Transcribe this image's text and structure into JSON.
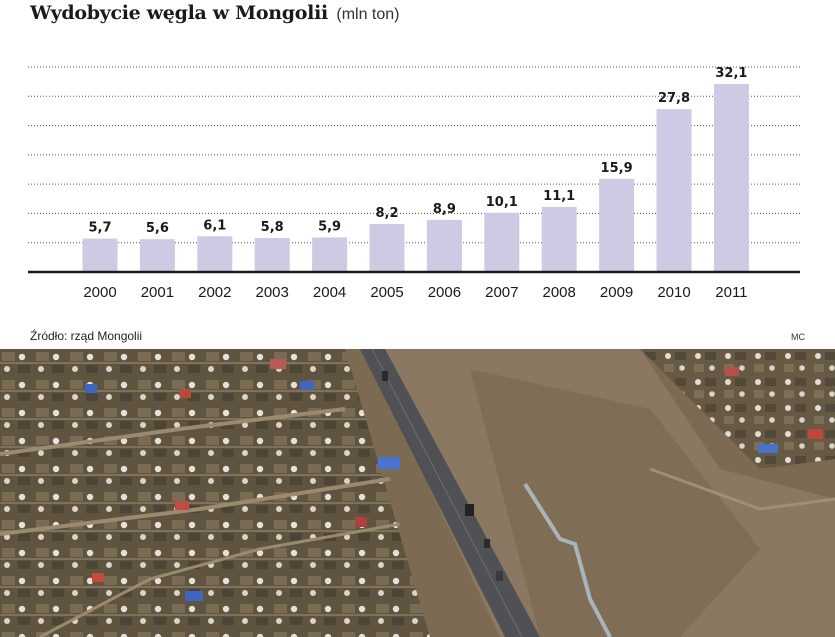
{
  "chart_data": {
    "type": "bar",
    "title": "Wydobycie węgla w Mongolii",
    "unit": "(mln ton)",
    "categories": [
      "2000",
      "2001",
      "2002",
      "2003",
      "2004",
      "2005",
      "2006",
      "2007",
      "2008",
      "2009",
      "2010",
      "2011"
    ],
    "values": [
      5.7,
      5.6,
      6.1,
      5.8,
      5.9,
      8.2,
      8.9,
      10.1,
      11.1,
      15.9,
      27.8,
      32.1
    ],
    "value_labels": [
      "5,7",
      "5,6",
      "6,1",
      "5,8",
      "5,9",
      "8,2",
      "8,9",
      "10,1",
      "11,1",
      "15,9",
      "27,8",
      "32,1"
    ],
    "ylim": [
      0,
      35
    ],
    "gridlines": [
      5,
      10,
      15,
      20,
      25,
      30,
      35
    ],
    "xlabel": "",
    "ylabel": "",
    "bar_color": "#cccbe3",
    "grid": true,
    "legend": "none"
  },
  "footer": {
    "source": "Źródło: rząd Mongolii",
    "credit": "MC"
  },
  "photo": {
    "description_icon": "aerial-photo-icon"
  }
}
